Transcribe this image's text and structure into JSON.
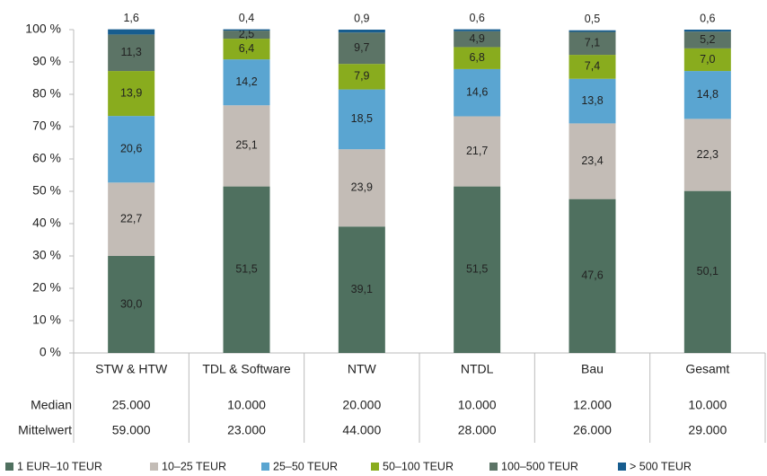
{
  "chart_data": {
    "type": "stacked_bar",
    "categories": [
      "STW & HTW",
      "TDL & Software",
      "NTW",
      "NTDL",
      "Bau",
      "Gesamt"
    ],
    "series": [
      {
        "name": "1 EUR–10 TEUR",
        "color": "#4f705f",
        "values": [
          30.0,
          51.5,
          39.1,
          51.5,
          47.6,
          50.1
        ],
        "value_labels": [
          "30,0",
          "51,5",
          "39,1",
          "51,5",
          "47,6",
          "50,1"
        ]
      },
      {
        "name": "10–25 TEUR",
        "color": "#c3bcb6",
        "values": [
          22.7,
          25.1,
          23.9,
          21.7,
          23.4,
          22.3
        ],
        "value_labels": [
          "22,7",
          "25,1",
          "23,9",
          "21,7",
          "23,4",
          "22,3"
        ]
      },
      {
        "name": "25–50 TEUR",
        "color": "#5aa5d1",
        "values": [
          20.6,
          14.2,
          18.5,
          14.6,
          13.8,
          14.8
        ],
        "value_labels": [
          "20,6",
          "14,2",
          "18,5",
          "14,6",
          "13,8",
          "14,8"
        ]
      },
      {
        "name": "50–100 TEUR",
        "color": "#89ac1e",
        "values": [
          13.9,
          6.4,
          7.9,
          6.8,
          7.4,
          7.0
        ],
        "value_labels": [
          "13,9",
          "6,4",
          "7,9",
          "6,8",
          "7,4",
          "7,0"
        ]
      },
      {
        "name": "100–500 TEUR",
        "color": "#5c7466",
        "values": [
          11.3,
          2.5,
          9.7,
          4.9,
          7.1,
          5.2
        ],
        "value_labels": [
          "11,3",
          "2,5",
          "9,7",
          "4,9",
          "7,1",
          "5,2"
        ]
      },
      {
        "name": "> 500 TEUR",
        "color": "#175d8f",
        "values": [
          1.6,
          0.4,
          0.9,
          0.6,
          0.5,
          0.6
        ],
        "value_labels": [
          "1,6",
          "0,4",
          "0,9",
          "0,6",
          "0,5",
          "0,6"
        ]
      }
    ],
    "ylim": [
      0,
      100
    ],
    "yticks": [
      {
        "value": 0,
        "label": "0 %"
      },
      {
        "value": 10,
        "label": "10 %"
      },
      {
        "value": 20,
        "label": "20 %"
      },
      {
        "value": 30,
        "label": "30 %"
      },
      {
        "value": 40,
        "label": "40 %"
      },
      {
        "value": 50,
        "label": "50 %"
      },
      {
        "value": 60,
        "label": "60 %"
      },
      {
        "value": 70,
        "label": "70 %"
      },
      {
        "value": 80,
        "label": "80 %"
      },
      {
        "value": 90,
        "label": "90 %"
      },
      {
        "value": 100,
        "label": "100 %"
      }
    ],
    "grid": false,
    "legend": "bottom",
    "table": {
      "rows": [
        {
          "label": "Median",
          "cells": [
            "25.000",
            "10.000",
            "20.000",
            "10.000",
            "12.000",
            "10.000"
          ]
        },
        {
          "label": "Mittelwert",
          "cells": [
            "59.000",
            "23.000",
            "44.000",
            "28.000",
            "26.000",
            "29.000"
          ]
        }
      ]
    }
  }
}
